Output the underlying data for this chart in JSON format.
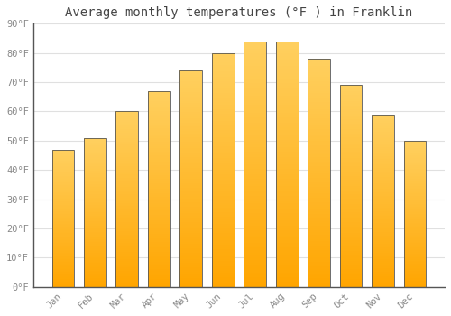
{
  "title": "Average monthly temperatures (°F ) in Franklin",
  "months": [
    "Jan",
    "Feb",
    "Mar",
    "Apr",
    "May",
    "Jun",
    "Jul",
    "Aug",
    "Sep",
    "Oct",
    "Nov",
    "Dec"
  ],
  "temperatures": [
    47,
    51,
    60,
    67,
    74,
    80,
    84,
    84,
    78,
    69,
    59,
    50
  ],
  "bar_color_bottom": "#FFA500",
  "bar_color_top": "#FFD060",
  "bar_edge_color": "#555555",
  "ylim": [
    0,
    90
  ],
  "yticks": [
    0,
    10,
    20,
    30,
    40,
    50,
    60,
    70,
    80,
    90
  ],
  "ytick_labels": [
    "0°F",
    "10°F",
    "20°F",
    "30°F",
    "40°F",
    "50°F",
    "60°F",
    "70°F",
    "80°F",
    "90°F"
  ],
  "background_color": "#ffffff",
  "grid_color": "#e0e0e0",
  "title_fontsize": 10,
  "tick_fontsize": 7.5,
  "font_color": "#888888"
}
